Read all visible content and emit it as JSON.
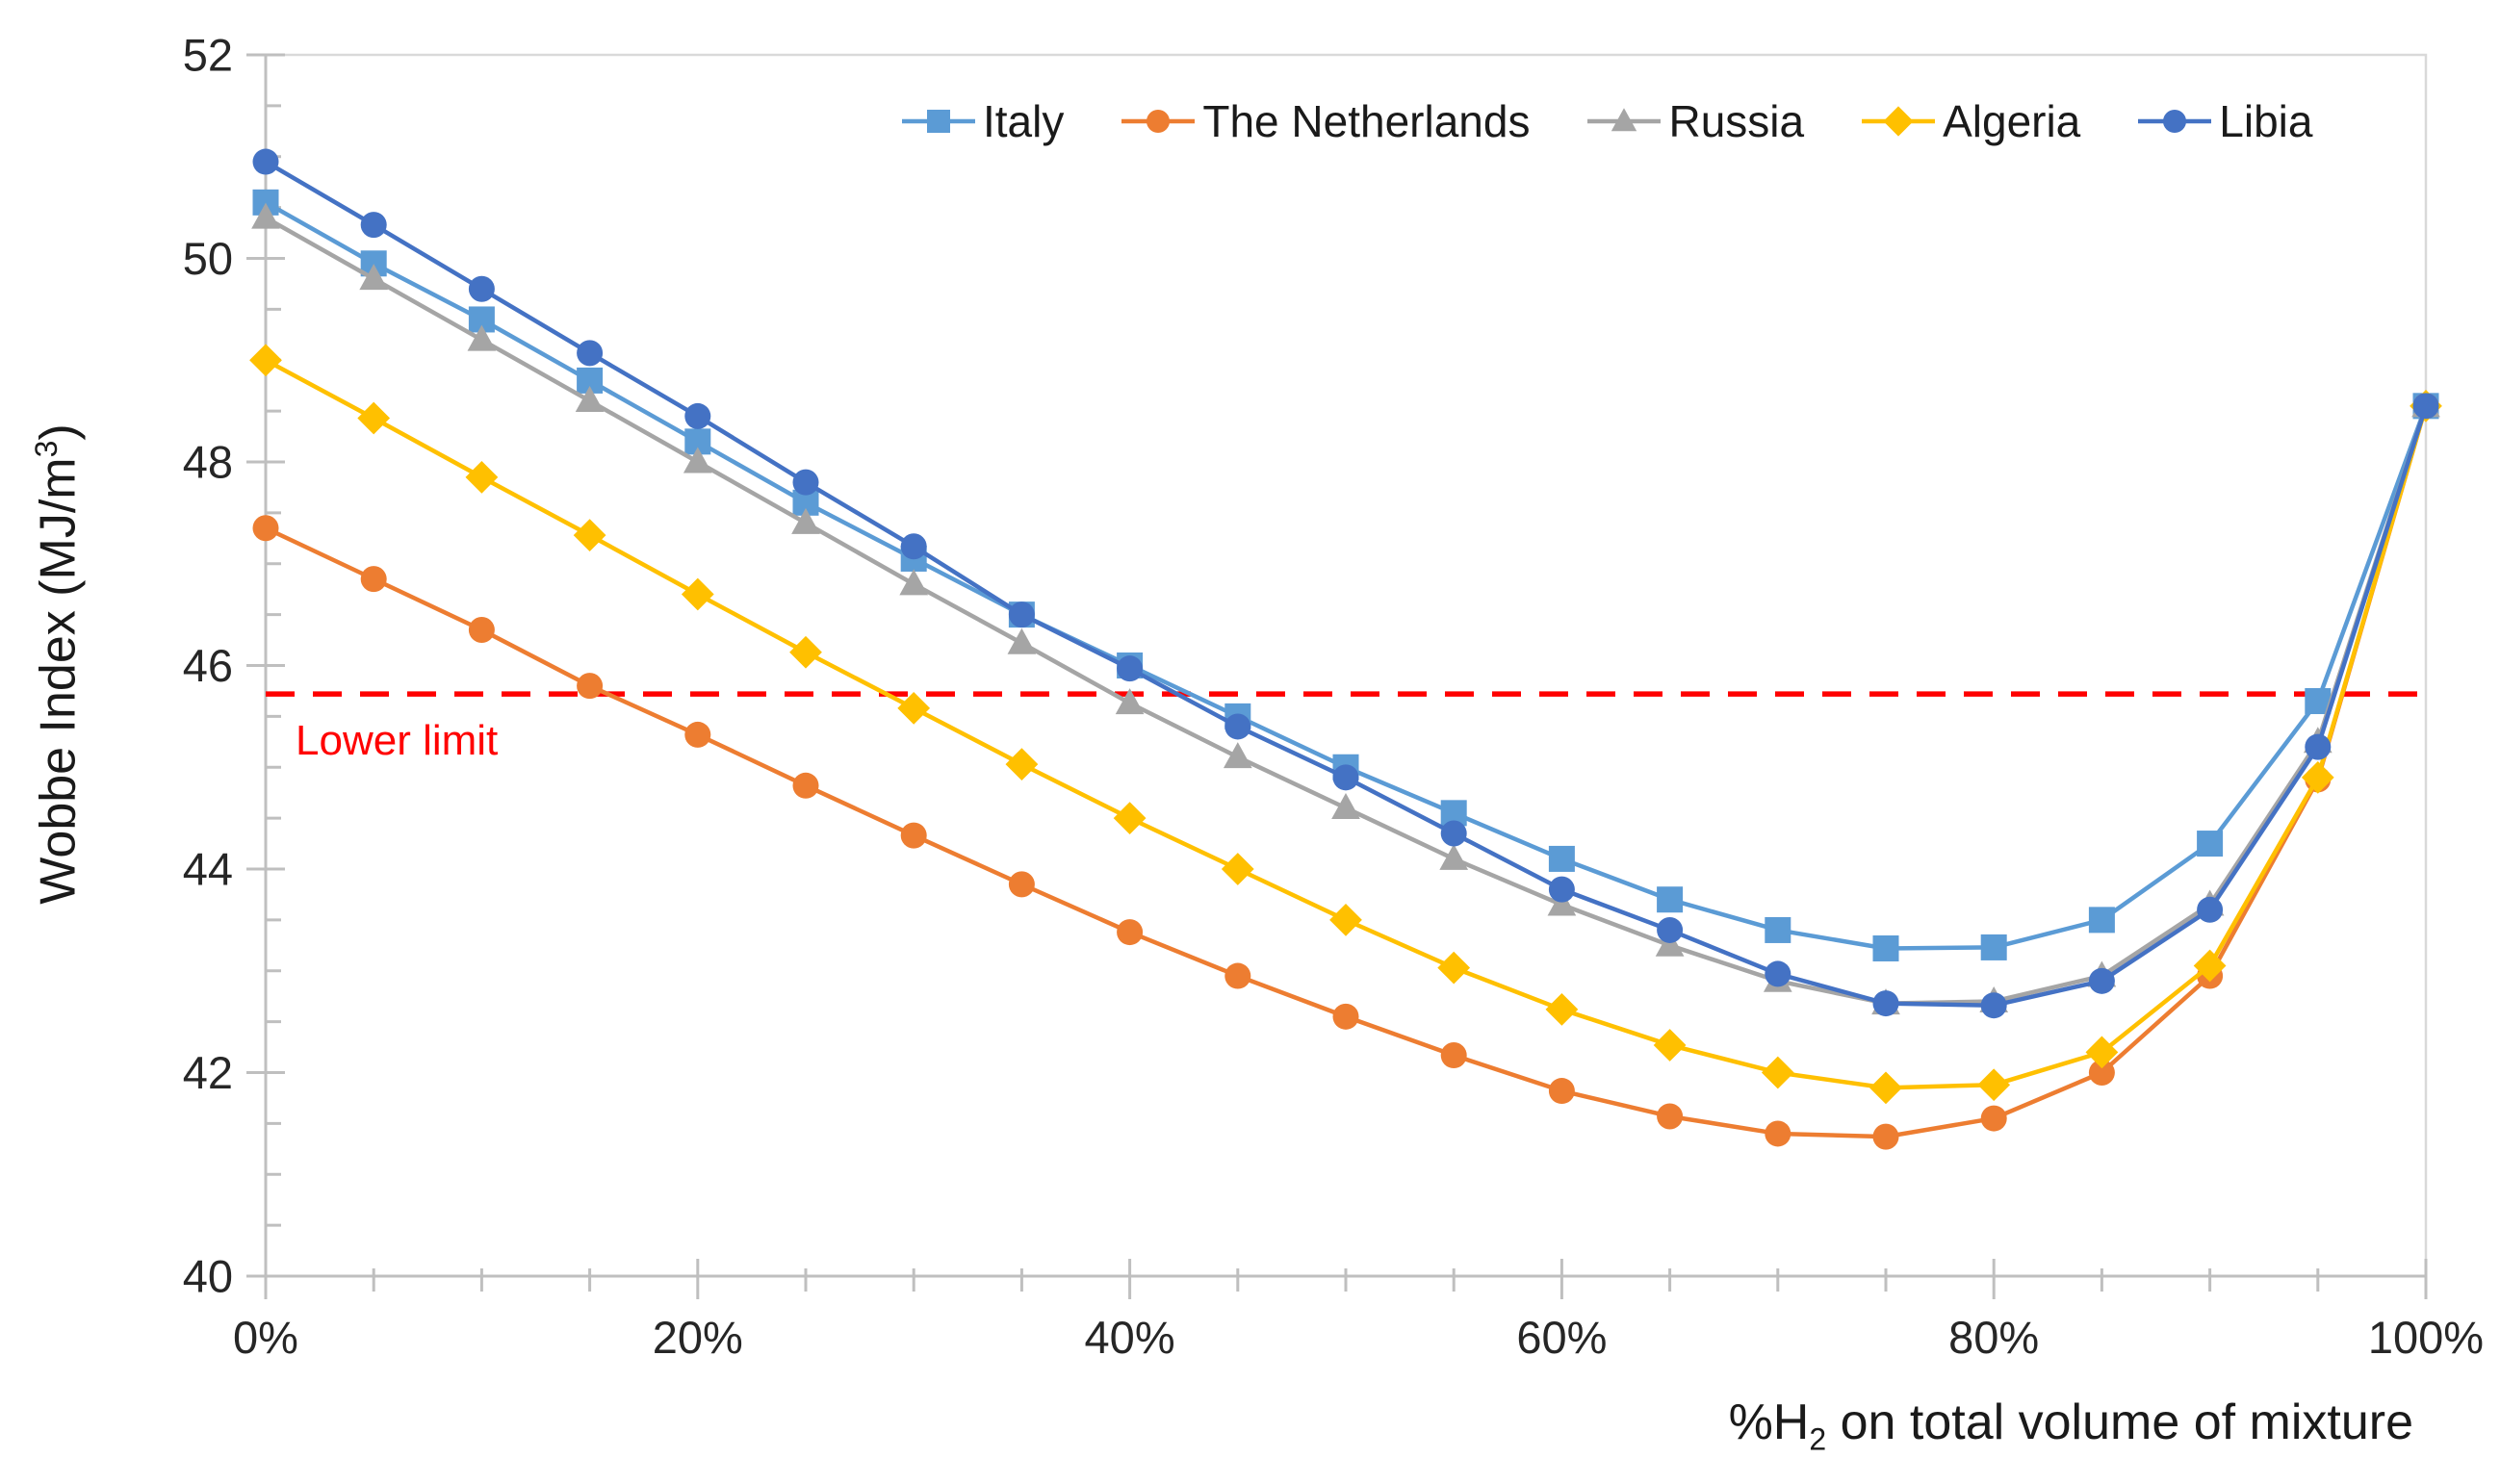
{
  "chart_data": {
    "type": "line",
    "title": "",
    "xlabel_parts": {
      "pre": "%H",
      "sub": "2",
      "post": " on total volume of mixture"
    },
    "ylabel_parts": {
      "pre": "Wobbe Index (MJ/m",
      "sup": "3",
      "post": ")"
    },
    "xlim": [
      0,
      100
    ],
    "ylim": [
      40,
      52
    ],
    "x_major_ticks": [
      0,
      20,
      40,
      60,
      80,
      100
    ],
    "x_major_tick_labels": [
      "0%",
      "20%",
      "40%",
      "60%",
      "80%",
      "100%"
    ],
    "x_minor_step": 5,
    "y_major_ticks": [
      40,
      42,
      44,
      46,
      48,
      50,
      52
    ],
    "y_major_tick_labels": [
      "40",
      "42",
      "44",
      "46",
      "48",
      "50",
      "52"
    ],
    "y_minor_step": 0.5,
    "grid": false,
    "legend_position": "top",
    "x": [
      0,
      5,
      10,
      15,
      20,
      25,
      30,
      35,
      40,
      45,
      50,
      55,
      60,
      65,
      70,
      75,
      80,
      85,
      90,
      95,
      100
    ],
    "series": [
      {
        "name": "Italy",
        "color": "#5B9BD5",
        "marker": "square",
        "values": [
          50.55,
          49.95,
          49.4,
          48.8,
          48.2,
          47.6,
          47.05,
          46.5,
          46.0,
          45.5,
          45.0,
          44.55,
          44.1,
          43.7,
          43.4,
          43.22,
          43.23,
          43.5,
          44.25,
          45.65,
          48.55
        ]
      },
      {
        "name": "The Netherlands",
        "color": "#ED7D31",
        "marker": "circle",
        "values": [
          47.35,
          46.85,
          46.35,
          45.8,
          45.32,
          44.82,
          44.33,
          43.85,
          43.38,
          42.95,
          42.55,
          42.17,
          41.82,
          41.57,
          41.4,
          41.37,
          41.55,
          42.0,
          42.95,
          44.88,
          48.55
        ]
      },
      {
        "name": "Russia",
        "color": "#A5A5A5",
        "marker": "triangle",
        "values": [
          50.4,
          49.8,
          49.2,
          48.6,
          48.0,
          47.4,
          46.8,
          46.22,
          45.63,
          45.1,
          44.6,
          44.1,
          43.65,
          43.25,
          42.9,
          42.68,
          42.7,
          42.95,
          43.65,
          45.25,
          48.55
        ]
      },
      {
        "name": "Algeria",
        "color": "#FFC000",
        "marker": "diamond",
        "values": [
          49.0,
          48.43,
          47.85,
          47.28,
          46.7,
          46.13,
          45.58,
          45.03,
          44.5,
          44.0,
          43.5,
          43.03,
          42.62,
          42.27,
          42.0,
          41.85,
          41.88,
          42.2,
          43.05,
          44.9,
          48.55
        ]
      },
      {
        "name": "Libia",
        "color": "#4472C4",
        "marker": "circle",
        "values": [
          50.95,
          50.33,
          49.7,
          49.07,
          48.45,
          47.8,
          47.17,
          46.5,
          45.97,
          45.4,
          44.9,
          44.35,
          43.8,
          43.4,
          42.97,
          42.68,
          42.66,
          42.9,
          43.6,
          45.2,
          48.55
        ]
      }
    ],
    "annotations": {
      "lower_limit": {
        "label": "Lower limit",
        "value": 45.72,
        "color": "#FF0000",
        "style": "dashed"
      }
    }
  },
  "colors": {
    "axis_line": "#BFBFBF",
    "plot_border": "#D9D9D9",
    "tick_text": "#262626",
    "title_text": "#1A1A1A",
    "background": "#FFFFFF"
  }
}
